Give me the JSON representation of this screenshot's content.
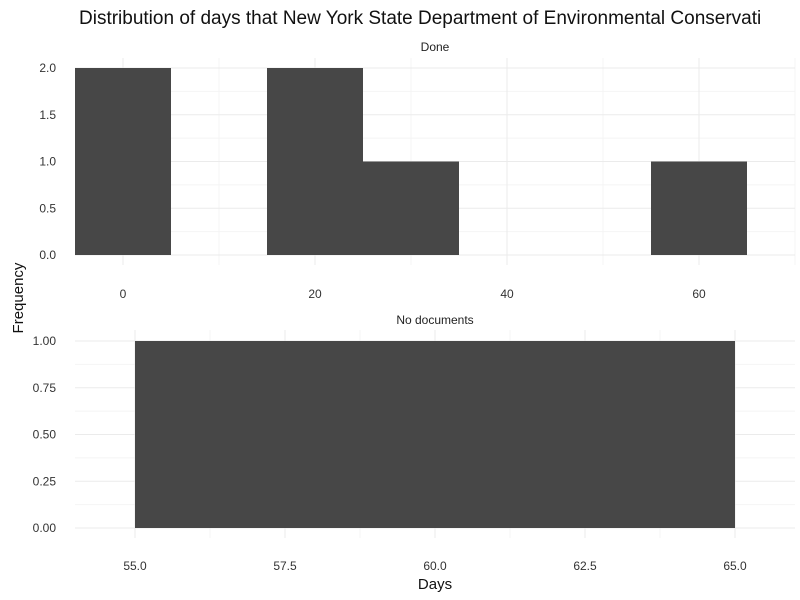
{
  "chart_data": {
    "type": "bar",
    "subtype": "histogram",
    "title": "Distribution of days that New York State Department of Environmental Conservati",
    "xlabel": "Days",
    "ylabel": "Frequency",
    "grid": true,
    "bar_color": "#474747",
    "panels": [
      {
        "name": "Done",
        "xlim": [
          -5,
          70
        ],
        "ylim": [
          0,
          2
        ],
        "x_ticks": [
          0,
          20,
          40,
          60
        ],
        "x_tick_labels": [
          "0",
          "20",
          "40",
          "60"
        ],
        "y_ticks": [
          0,
          0.5,
          1,
          1.5,
          2
        ],
        "y_tick_labels": [
          "0.0",
          "0.5",
          "1.0",
          "1.5",
          "2.0"
        ],
        "bins": [
          {
            "x0": -5,
            "x1": 5,
            "count": 2
          },
          {
            "x0": 15,
            "x1": 25,
            "count": 2
          },
          {
            "x0": 25,
            "x1": 35,
            "count": 1
          },
          {
            "x0": 55,
            "x1": 65,
            "count": 1
          }
        ]
      },
      {
        "name": "No documents",
        "xlim": [
          54,
          66
        ],
        "ylim": [
          0,
          1
        ],
        "x_ticks": [
          55,
          57.5,
          60,
          62.5,
          65
        ],
        "x_tick_labels": [
          "55.0",
          "57.5",
          "60.0",
          "62.5",
          "65.0"
        ],
        "y_ticks": [
          0,
          0.25,
          0.5,
          0.75,
          1
        ],
        "y_tick_labels": [
          "0.00",
          "0.25",
          "0.50",
          "0.75",
          "1.00"
        ],
        "bins": [
          {
            "x0": 55,
            "x1": 65,
            "count": 1
          }
        ]
      }
    ]
  }
}
